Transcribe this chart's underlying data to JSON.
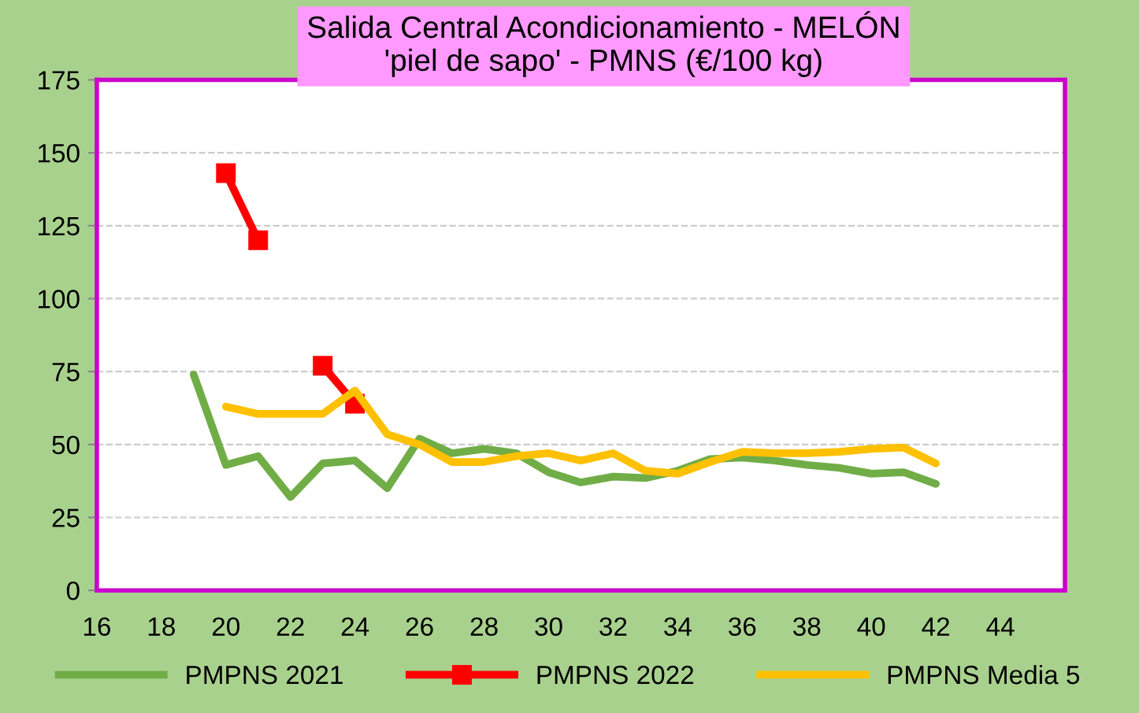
{
  "chart_data": {
    "type": "line",
    "title": "Salida Central Acondicionamiento - MELÓN\n'piel de sapo' - PMNS (€/100 kg)",
    "x": [
      19,
      20,
      21,
      22,
      23,
      24,
      25,
      26,
      27,
      28,
      29,
      30,
      31,
      32,
      33,
      34,
      35,
      36,
      37,
      38,
      39,
      40,
      41,
      42
    ],
    "series": [
      {
        "name": "PMPNS 2021",
        "color": "#70ad47",
        "marker": "none",
        "values": [
          74,
          43,
          46,
          32,
          43.5,
          44.5,
          35,
          52,
          47,
          48.5,
          47,
          40.5,
          37,
          39,
          38.5,
          41,
          45,
          45.5,
          44.5,
          43,
          42,
          40,
          40.5,
          36.5
        ]
      },
      {
        "name": "PMPNS 2022",
        "color": "#ff0000",
        "marker": "square",
        "values": [
          null,
          143,
          120,
          null,
          77,
          64,
          null,
          null,
          null,
          null,
          null,
          null,
          null,
          null,
          null,
          null,
          null,
          null,
          null,
          null,
          null,
          null,
          null,
          null
        ]
      },
      {
        "name": "PMPNS Media 5",
        "color": "#ffc000",
        "marker": "none",
        "values": [
          null,
          63,
          60.5,
          60.5,
          60.5,
          68.5,
          53.5,
          50,
          44,
          44,
          46,
          47,
          44.5,
          47,
          41,
          40,
          44,
          47.5,
          47,
          47,
          47.5,
          48.5,
          49,
          43.5
        ]
      }
    ],
    "xlim": [
      16,
      46
    ],
    "xticks": [
      16,
      18,
      20,
      22,
      24,
      26,
      28,
      30,
      32,
      34,
      36,
      38,
      40,
      42,
      44
    ],
    "ylim": [
      0,
      175
    ],
    "yticks": [
      0,
      25,
      50,
      75,
      100,
      125,
      150,
      175
    ],
    "grid": "y",
    "legend": "bottom",
    "line_style": "solid"
  }
}
